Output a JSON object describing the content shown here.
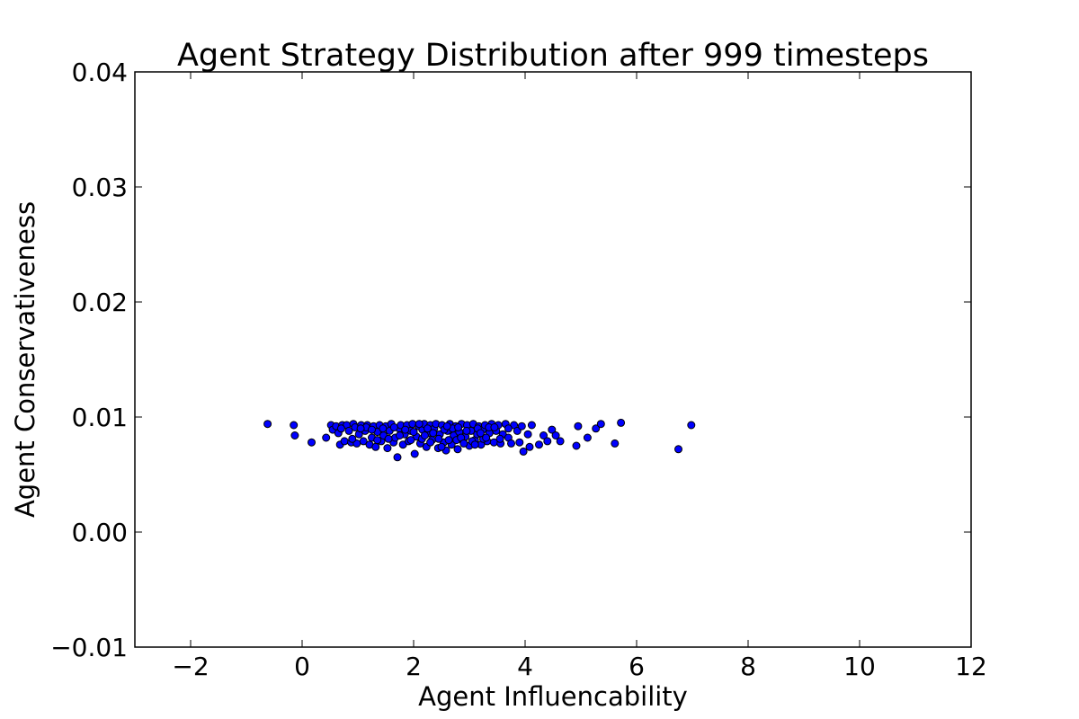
{
  "chart_data": {
    "type": "scatter",
    "title": "Agent Strategy Distribution after 999 timesteps",
    "xlabel": "Agent Influencability",
    "ylabel": "Agent Conservativeness",
    "xlim": [
      -3,
      12
    ],
    "ylim": [
      -0.01,
      0.04
    ],
    "xticks": [
      -2,
      0,
      2,
      4,
      6,
      8,
      10,
      12
    ],
    "xtick_labels": [
      "−2",
      "0",
      "2",
      "4",
      "6",
      "8",
      "10",
      "12"
    ],
    "yticks": [
      -0.01,
      0.0,
      0.01,
      0.02,
      0.03,
      0.04
    ],
    "ytick_labels": [
      "−0.01",
      "0.00",
      "0.01",
      "0.02",
      "0.03",
      "0.04"
    ],
    "grid": false,
    "legend": "none",
    "marker_color": "#0000ff",
    "marker_edge": "#000000",
    "series": [
      {
        "points": [
          [
            -0.62,
            0.0094
          ],
          [
            -0.15,
            0.0093
          ],
          [
            -0.13,
            0.0084
          ],
          [
            0.17,
            0.0078
          ],
          [
            0.43,
            0.0082
          ],
          [
            0.52,
            0.0093
          ],
          [
            0.55,
            0.0089
          ],
          [
            0.61,
            0.0092
          ],
          [
            0.65,
            0.0086
          ],
          [
            0.68,
            0.0076
          ],
          [
            0.72,
            0.0093
          ],
          [
            0.76,
            0.0079
          ],
          [
            0.8,
            0.0093
          ],
          [
            0.84,
            0.0088
          ],
          [
            0.88,
            0.0078
          ],
          [
            0.92,
            0.0094
          ],
          [
            0.95,
            0.0091
          ],
          [
            0.98,
            0.0077
          ],
          [
            1.02,
            0.0085
          ],
          [
            1.06,
            0.0093
          ],
          [
            1.1,
            0.0079
          ],
          [
            1.13,
            0.0088
          ],
          [
            1.17,
            0.0093
          ],
          [
            1.21,
            0.0076
          ],
          [
            1.25,
            0.0082
          ],
          [
            1.28,
            0.0092
          ],
          [
            1.32,
            0.0074
          ],
          [
            1.35,
            0.0087
          ],
          [
            1.39,
            0.0093
          ],
          [
            1.42,
            0.0079
          ],
          [
            1.46,
            0.0084
          ],
          [
            1.5,
            0.0092
          ],
          [
            1.53,
            0.0073
          ],
          [
            1.57,
            0.0088
          ],
          [
            1.6,
            0.0094
          ],
          [
            1.64,
            0.0078
          ],
          [
            1.67,
            0.0082
          ],
          [
            1.71,
            0.0065
          ],
          [
            1.74,
            0.009
          ],
          [
            1.77,
            0.0093
          ],
          [
            1.81,
            0.0076
          ],
          [
            1.84,
            0.0085
          ],
          [
            1.88,
            0.0093
          ],
          [
            1.91,
            0.0079
          ],
          [
            1.95,
            0.0088
          ],
          [
            1.98,
            0.0094
          ],
          [
            2.02,
            0.0068
          ],
          [
            2.05,
            0.0083
          ],
          [
            2.09,
            0.0092
          ],
          [
            2.12,
            0.0077
          ],
          [
            2.16,
            0.0089
          ],
          [
            2.19,
            0.0094
          ],
          [
            2.23,
            0.0074
          ],
          [
            2.26,
            0.0086
          ],
          [
            2.3,
            0.0093
          ],
          [
            2.33,
            0.008
          ],
          [
            2.37,
            0.009
          ],
          [
            2.4,
            0.0094
          ],
          [
            2.44,
            0.0073
          ],
          [
            2.47,
            0.0085
          ],
          [
            2.51,
            0.0093
          ],
          [
            2.54,
            0.0078
          ],
          [
            2.58,
            0.0071
          ],
          [
            2.61,
            0.0088
          ],
          [
            2.65,
            0.0094
          ],
          [
            2.68,
            0.0076
          ],
          [
            2.72,
            0.0084
          ],
          [
            2.75,
            0.0092
          ],
          [
            2.79,
            0.0072
          ],
          [
            2.82,
            0.0087
          ],
          [
            2.86,
            0.0094
          ],
          [
            2.89,
            0.0079
          ],
          [
            2.93,
            0.0083
          ],
          [
            2.96,
            0.0093
          ],
          [
            3.0,
            0.0075
          ],
          [
            3.03,
            0.0088
          ],
          [
            3.07,
            0.0094
          ],
          [
            3.1,
            0.008
          ],
          [
            3.14,
            0.0085
          ],
          [
            3.17,
            0.0092
          ],
          [
            3.21,
            0.0076
          ],
          [
            3.24,
            0.0089
          ],
          [
            3.28,
            0.0093
          ],
          [
            3.32,
            0.0079
          ],
          [
            3.36,
            0.0086
          ],
          [
            3.4,
            0.0094
          ],
          [
            3.44,
            0.0078
          ],
          [
            3.48,
            0.0088
          ],
          [
            3.52,
            0.0093
          ],
          [
            3.56,
            0.0077
          ],
          [
            3.6,
            0.0085
          ],
          [
            3.65,
            0.0094
          ],
          [
            3.7,
            0.0082
          ],
          [
            3.75,
            0.0077
          ],
          [
            3.8,
            0.0093
          ],
          [
            3.86,
            0.0088
          ],
          [
            3.9,
            0.0078
          ],
          [
            3.94,
            0.0092
          ],
          [
            3.97,
            0.007
          ],
          [
            4.05,
            0.0085
          ],
          [
            4.08,
            0.0074
          ],
          [
            4.12,
            0.0093
          ],
          [
            4.25,
            0.0076
          ],
          [
            4.33,
            0.0084
          ],
          [
            4.4,
            0.0079
          ],
          [
            4.48,
            0.0089
          ],
          [
            4.55,
            0.0084
          ],
          [
            4.63,
            0.0079
          ],
          [
            4.92,
            0.0075
          ],
          [
            4.95,
            0.0092
          ],
          [
            5.12,
            0.0082
          ],
          [
            5.27,
            0.009
          ],
          [
            5.36,
            0.0094
          ],
          [
            5.61,
            0.0077
          ],
          [
            5.72,
            0.0095
          ],
          [
            6.75,
            0.0072
          ],
          [
            6.98,
            0.0093
          ],
          [
            1.15,
            0.0091
          ],
          [
            1.45,
            0.009
          ],
          [
            1.55,
            0.0081
          ],
          [
            1.85,
            0.0089
          ],
          [
            2.0,
            0.0087
          ],
          [
            2.15,
            0.0081
          ],
          [
            2.25,
            0.009
          ],
          [
            2.35,
            0.0086
          ],
          [
            2.45,
            0.0081
          ],
          [
            2.55,
            0.0089
          ],
          [
            2.63,
            0.008
          ],
          [
            2.7,
            0.009
          ],
          [
            2.77,
            0.008
          ],
          [
            2.85,
            0.0082
          ],
          [
            2.95,
            0.0088
          ],
          [
            3.05,
            0.0079
          ],
          [
            3.15,
            0.009
          ],
          [
            3.25,
            0.0081
          ],
          [
            3.35,
            0.0091
          ],
          [
            1.25,
            0.0089
          ],
          [
            1.35,
            0.008
          ],
          [
            1.65,
            0.0091
          ],
          [
            1.75,
            0.0084
          ],
          [
            1.95,
            0.008
          ],
          [
            2.1,
            0.0094
          ],
          [
            2.2,
            0.0084
          ],
          [
            2.3,
            0.0078
          ],
          [
            2.5,
            0.0074
          ],
          [
            2.6,
            0.0092
          ],
          [
            2.8,
            0.0091
          ],
          [
            2.9,
            0.0077
          ],
          [
            3.1,
            0.0076
          ],
          [
            3.2,
            0.0086
          ],
          [
            3.3,
            0.0082
          ],
          [
            3.45,
            0.0091
          ],
          [
            3.55,
            0.0081
          ],
          [
            3.7,
            0.009
          ],
          [
            0.9,
            0.0081
          ],
          [
            1.05,
            0.009
          ],
          [
            0.7,
            0.009
          ]
        ]
      }
    ]
  }
}
